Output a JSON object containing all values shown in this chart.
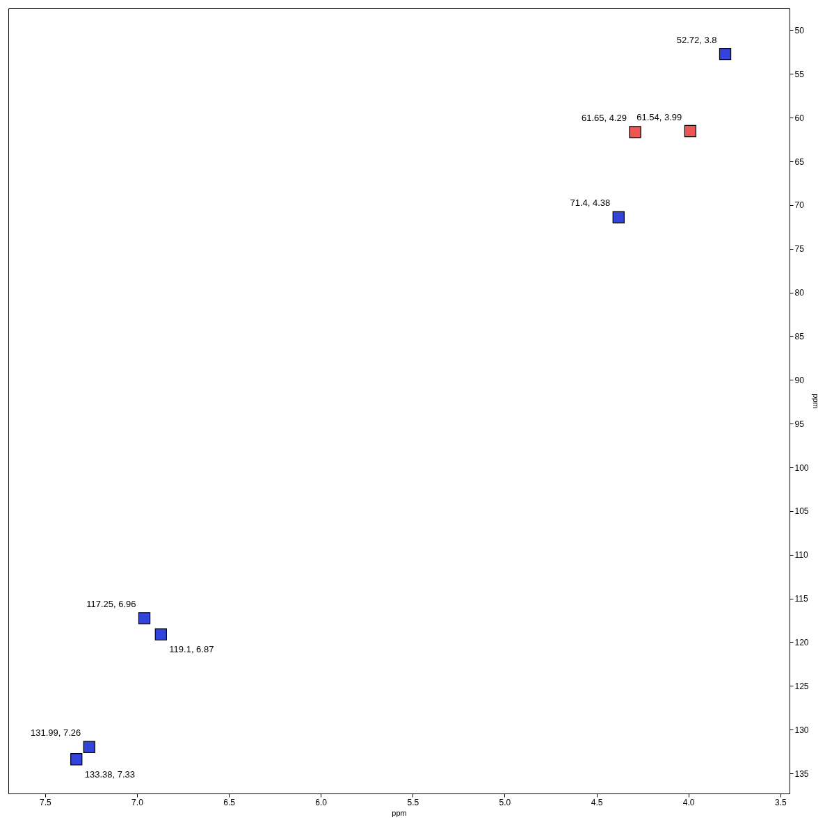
{
  "chart_data": {
    "type": "scatter",
    "xlabel": "ppm",
    "ylabel": "ppm",
    "xlim": [
      7.7,
      3.45
    ],
    "xticks": [
      7.5,
      {
        "value": 7,
        "label": "7.0"
      },
      6.5,
      {
        "value": 6,
        "label": "6.0"
      },
      5.5,
      {
        "value": 5,
        "label": "5.0"
      },
      4.5,
      {
        "value": 4,
        "label": "4.0"
      },
      3.5
    ],
    "ylim": [
      137.3,
      47.5
    ],
    "yticks": [
      50,
      55,
      60,
      65,
      70,
      75,
      80,
      85,
      90,
      95,
      100,
      105,
      110,
      115,
      120,
      125,
      130,
      135
    ],
    "series": [
      {
        "color": "#3344dd",
        "x": [
          3.8,
          4.38,
          6.96,
          6.87,
          7.33,
          7.26
        ],
        "values": [
          52.72,
          71.4,
          117.25,
          119.1,
          133.38,
          131.99
        ]
      },
      {
        "color": "#ee5555",
        "x": [
          4.29,
          3.99
        ],
        "values": [
          61.65,
          61.54
        ]
      }
    ],
    "annotations": [
      {
        "text": "52.72, 3.8",
        "x": 3.8,
        "y": 52.72
      },
      {
        "text": "71.4, 4.38",
        "x": 4.38,
        "y": 71.4
      },
      {
        "text": "117.25, 6.96",
        "x": 6.96,
        "y": 117.25
      },
      {
        "text": "119.1, 6.87",
        "x": 6.87,
        "y": 119.1
      },
      {
        "text": "133.38, 7.33",
        "x": 7.33,
        "y": 133.38
      },
      {
        "text": "131.99, 7.26",
        "x": 7.26,
        "y": 131.99
      },
      {
        "text": "61.65, 4.29",
        "x": 4.29,
        "y": 61.65
      },
      {
        "text": "61.54, 3.99",
        "x": 3.99,
        "y": 61.54
      }
    ],
    "marker": "square",
    "grid": false,
    "legend": false
  }
}
